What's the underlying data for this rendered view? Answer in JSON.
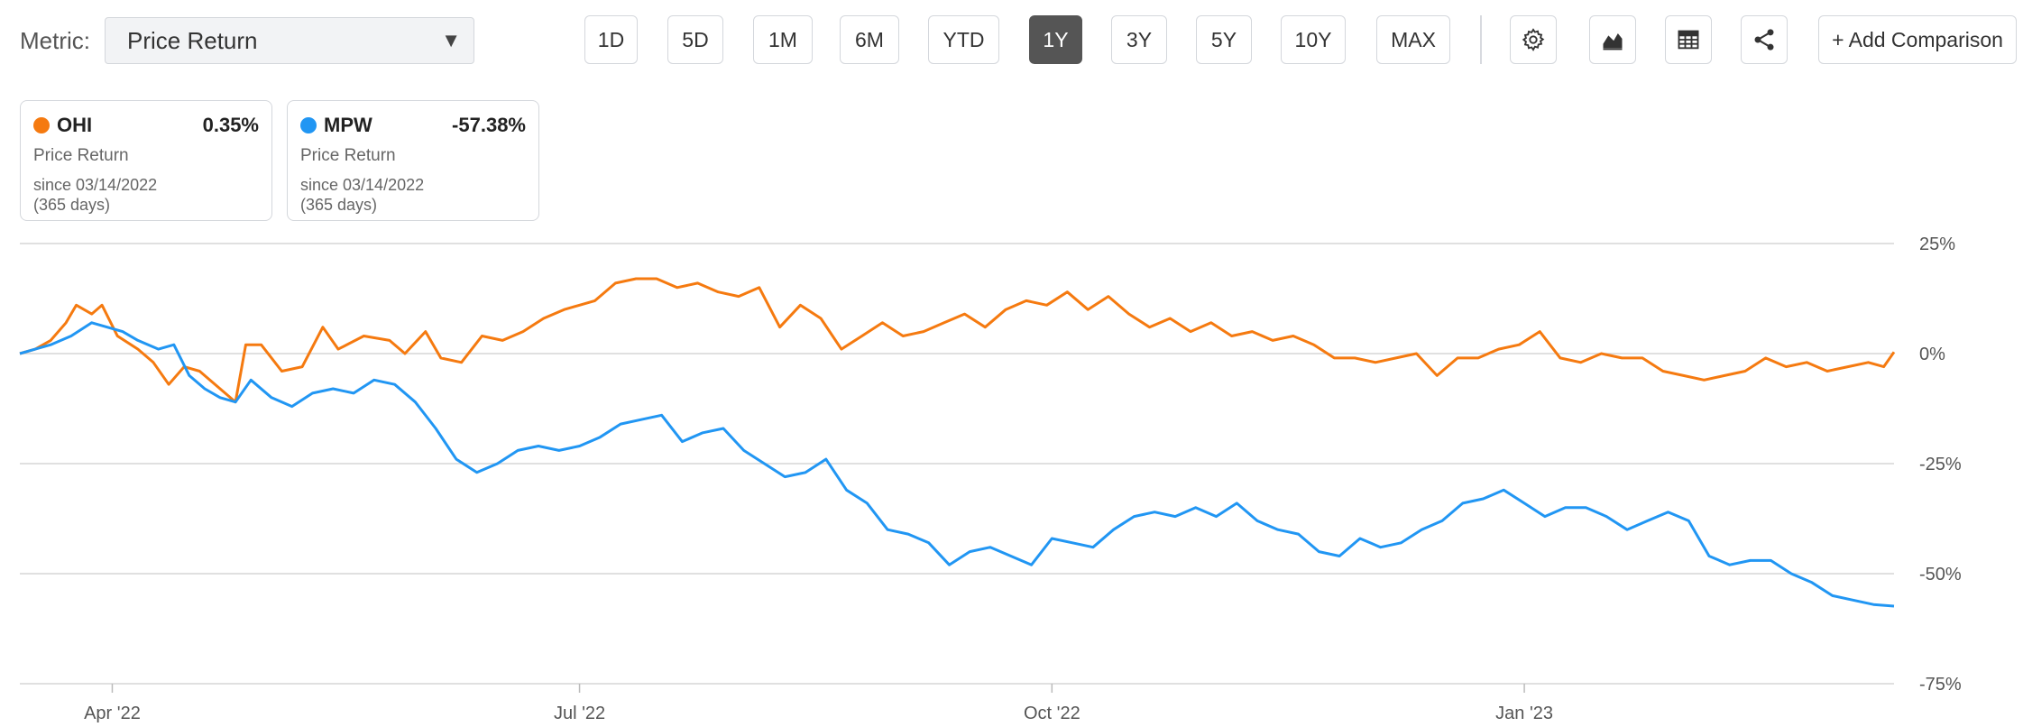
{
  "metric": {
    "label": "Metric:",
    "value": "Price Return"
  },
  "ranges": [
    "1D",
    "5D",
    "1M",
    "6M",
    "YTD",
    "1Y",
    "3Y",
    "5Y",
    "10Y",
    "MAX"
  ],
  "active_range": "1Y",
  "tools": [
    "gear-icon",
    "chart-area-icon",
    "table-icon",
    "share-icon"
  ],
  "add_comparison": "+ Add Comparison",
  "cards": [
    {
      "ticker": "OHI",
      "value": "0.35%",
      "metric": "Price Return",
      "since": "since 03/14/2022",
      "days": "(365 days)",
      "color": "#f57a10"
    },
    {
      "ticker": "MPW",
      "value": "-57.38%",
      "metric": "Price Return",
      "since": "since 03/14/2022",
      "days": "(365 days)",
      "color": "#2196f3"
    }
  ],
  "chart_data": {
    "type": "line",
    "x_range": [
      "2022-03-14",
      "2023-03-14"
    ],
    "ylim": [
      -75,
      25
    ],
    "y_ticks": [
      25,
      0,
      -25,
      -50,
      -75
    ],
    "y_tick_labels": [
      "25%",
      "0%",
      "-25%",
      "-50%",
      "-75%"
    ],
    "x_ticks": [
      "2022-04-01",
      "2022-07-01",
      "2022-10-01",
      "2023-01-01"
    ],
    "x_tick_labels": [
      "Apr '22",
      "Jul '22",
      "Oct '22",
      "Jan '23"
    ],
    "grid": true,
    "series": [
      {
        "name": "OHI",
        "color": "#f57a10",
        "points": [
          [
            "2022-03-14",
            0
          ],
          [
            "2022-03-17",
            1
          ],
          [
            "2022-03-20",
            3
          ],
          [
            "2022-03-23",
            7
          ],
          [
            "2022-03-25",
            11
          ],
          [
            "2022-03-28",
            9
          ],
          [
            "2022-03-30",
            11
          ],
          [
            "2022-04-02",
            4
          ],
          [
            "2022-04-06",
            1
          ],
          [
            "2022-04-09",
            -2
          ],
          [
            "2022-04-12",
            -7
          ],
          [
            "2022-04-15",
            -3
          ],
          [
            "2022-04-18",
            -4
          ],
          [
            "2022-04-22",
            -8
          ],
          [
            "2022-04-25",
            -11
          ],
          [
            "2022-04-27",
            2
          ],
          [
            "2022-04-30",
            2
          ],
          [
            "2022-05-04",
            -4
          ],
          [
            "2022-05-08",
            -3
          ],
          [
            "2022-05-12",
            6
          ],
          [
            "2022-05-15",
            1
          ],
          [
            "2022-05-20",
            4
          ],
          [
            "2022-05-25",
            3
          ],
          [
            "2022-05-28",
            0
          ],
          [
            "2022-06-01",
            5
          ],
          [
            "2022-06-04",
            -1
          ],
          [
            "2022-06-08",
            -2
          ],
          [
            "2022-06-12",
            4
          ],
          [
            "2022-06-16",
            3
          ],
          [
            "2022-06-20",
            5
          ],
          [
            "2022-06-24",
            8
          ],
          [
            "2022-06-28",
            10
          ],
          [
            "2022-07-01",
            11
          ],
          [
            "2022-07-04",
            12
          ],
          [
            "2022-07-08",
            16
          ],
          [
            "2022-07-12",
            17
          ],
          [
            "2022-07-16",
            17
          ],
          [
            "2022-07-20",
            15
          ],
          [
            "2022-07-24",
            16
          ],
          [
            "2022-07-28",
            14
          ],
          [
            "2022-08-01",
            13
          ],
          [
            "2022-08-05",
            15
          ],
          [
            "2022-08-09",
            6
          ],
          [
            "2022-08-13",
            11
          ],
          [
            "2022-08-17",
            8
          ],
          [
            "2022-08-21",
            1
          ],
          [
            "2022-08-25",
            4
          ],
          [
            "2022-08-29",
            7
          ],
          [
            "2022-09-02",
            4
          ],
          [
            "2022-09-06",
            5
          ],
          [
            "2022-09-10",
            7
          ],
          [
            "2022-09-14",
            9
          ],
          [
            "2022-09-18",
            6
          ],
          [
            "2022-09-22",
            10
          ],
          [
            "2022-09-26",
            12
          ],
          [
            "2022-09-30",
            11
          ],
          [
            "2022-10-04",
            14
          ],
          [
            "2022-10-08",
            10
          ],
          [
            "2022-10-12",
            13
          ],
          [
            "2022-10-16",
            9
          ],
          [
            "2022-10-20",
            6
          ],
          [
            "2022-10-24",
            8
          ],
          [
            "2022-10-28",
            5
          ],
          [
            "2022-11-01",
            7
          ],
          [
            "2022-11-05",
            4
          ],
          [
            "2022-11-09",
            5
          ],
          [
            "2022-11-13",
            3
          ],
          [
            "2022-11-17",
            4
          ],
          [
            "2022-11-21",
            2
          ],
          [
            "2022-11-25",
            -1
          ],
          [
            "2022-11-29",
            -1
          ],
          [
            "2022-12-03",
            -2
          ],
          [
            "2022-12-07",
            -1
          ],
          [
            "2022-12-11",
            0
          ],
          [
            "2022-12-15",
            -5
          ],
          [
            "2022-12-19",
            -1
          ],
          [
            "2022-12-23",
            -1
          ],
          [
            "2022-12-27",
            1
          ],
          [
            "2022-12-31",
            2
          ],
          [
            "2023-01-04",
            5
          ],
          [
            "2023-01-08",
            -1
          ],
          [
            "2023-01-12",
            -2
          ],
          [
            "2023-01-16",
            0
          ],
          [
            "2023-01-20",
            -1
          ],
          [
            "2023-01-24",
            -1
          ],
          [
            "2023-01-28",
            -4
          ],
          [
            "2023-02-01",
            -5
          ],
          [
            "2023-02-05",
            -6
          ],
          [
            "2023-02-09",
            -5
          ],
          [
            "2023-02-13",
            -4
          ],
          [
            "2023-02-17",
            -1
          ],
          [
            "2023-02-21",
            -3
          ],
          [
            "2023-02-25",
            -2
          ],
          [
            "2023-03-01",
            -4
          ],
          [
            "2023-03-05",
            -3
          ],
          [
            "2023-03-09",
            -2
          ],
          [
            "2023-03-12",
            -3
          ],
          [
            "2023-03-14",
            0.35
          ]
        ]
      },
      {
        "name": "MPW",
        "color": "#2196f3",
        "points": [
          [
            "2022-03-14",
            0
          ],
          [
            "2022-03-17",
            1
          ],
          [
            "2022-03-20",
            2
          ],
          [
            "2022-03-24",
            4
          ],
          [
            "2022-03-28",
            7
          ],
          [
            "2022-03-31",
            6
          ],
          [
            "2022-04-03",
            5
          ],
          [
            "2022-04-06",
            3
          ],
          [
            "2022-04-10",
            1
          ],
          [
            "2022-04-13",
            2
          ],
          [
            "2022-04-16",
            -5
          ],
          [
            "2022-04-19",
            -8
          ],
          [
            "2022-04-22",
            -10
          ],
          [
            "2022-04-25",
            -11
          ],
          [
            "2022-04-28",
            -6
          ],
          [
            "2022-05-02",
            -10
          ],
          [
            "2022-05-06",
            -12
          ],
          [
            "2022-05-10",
            -9
          ],
          [
            "2022-05-14",
            -8
          ],
          [
            "2022-05-18",
            -9
          ],
          [
            "2022-05-22",
            -6
          ],
          [
            "2022-05-26",
            -7
          ],
          [
            "2022-05-30",
            -11
          ],
          [
            "2022-06-03",
            -17
          ],
          [
            "2022-06-07",
            -24
          ],
          [
            "2022-06-11",
            -27
          ],
          [
            "2022-06-15",
            -25
          ],
          [
            "2022-06-19",
            -22
          ],
          [
            "2022-06-23",
            -21
          ],
          [
            "2022-06-27",
            -22
          ],
          [
            "2022-07-01",
            -21
          ],
          [
            "2022-07-05",
            -19
          ],
          [
            "2022-07-09",
            -16
          ],
          [
            "2022-07-13",
            -15
          ],
          [
            "2022-07-17",
            -14
          ],
          [
            "2022-07-21",
            -20
          ],
          [
            "2022-07-25",
            -18
          ],
          [
            "2022-07-29",
            -17
          ],
          [
            "2022-08-02",
            -22
          ],
          [
            "2022-08-06",
            -25
          ],
          [
            "2022-08-10",
            -28
          ],
          [
            "2022-08-14",
            -27
          ],
          [
            "2022-08-18",
            -24
          ],
          [
            "2022-08-22",
            -31
          ],
          [
            "2022-08-26",
            -34
          ],
          [
            "2022-08-30",
            -40
          ],
          [
            "2022-09-03",
            -41
          ],
          [
            "2022-09-07",
            -43
          ],
          [
            "2022-09-11",
            -48
          ],
          [
            "2022-09-15",
            -45
          ],
          [
            "2022-09-19",
            -44
          ],
          [
            "2022-09-23",
            -46
          ],
          [
            "2022-09-27",
            -48
          ],
          [
            "2022-10-01",
            -42
          ],
          [
            "2022-10-05",
            -43
          ],
          [
            "2022-10-09",
            -44
          ],
          [
            "2022-10-13",
            -40
          ],
          [
            "2022-10-17",
            -37
          ],
          [
            "2022-10-21",
            -36
          ],
          [
            "2022-10-25",
            -37
          ],
          [
            "2022-10-29",
            -35
          ],
          [
            "2022-11-02",
            -37
          ],
          [
            "2022-11-06",
            -34
          ],
          [
            "2022-11-10",
            -38
          ],
          [
            "2022-11-14",
            -40
          ],
          [
            "2022-11-18",
            -41
          ],
          [
            "2022-11-22",
            -45
          ],
          [
            "2022-11-26",
            -46
          ],
          [
            "2022-11-30",
            -42
          ],
          [
            "2022-12-04",
            -44
          ],
          [
            "2022-12-08",
            -43
          ],
          [
            "2022-12-12",
            -40
          ],
          [
            "2022-12-16",
            -38
          ],
          [
            "2022-12-20",
            -34
          ],
          [
            "2022-12-24",
            -33
          ],
          [
            "2022-12-28",
            -31
          ],
          [
            "2023-01-01",
            -34
          ],
          [
            "2023-01-05",
            -37
          ],
          [
            "2023-01-09",
            -35
          ],
          [
            "2023-01-13",
            -35
          ],
          [
            "2023-01-17",
            -37
          ],
          [
            "2023-01-21",
            -40
          ],
          [
            "2023-01-25",
            -38
          ],
          [
            "2023-01-29",
            -36
          ],
          [
            "2023-02-02",
            -38
          ],
          [
            "2023-02-06",
            -46
          ],
          [
            "2023-02-10",
            -48
          ],
          [
            "2023-02-14",
            -47
          ],
          [
            "2023-02-18",
            -47
          ],
          [
            "2023-02-22",
            -50
          ],
          [
            "2023-02-26",
            -52
          ],
          [
            "2023-03-02",
            -55
          ],
          [
            "2023-03-06",
            -56
          ],
          [
            "2023-03-10",
            -57
          ],
          [
            "2023-03-14",
            -57.38
          ]
        ]
      }
    ]
  }
}
